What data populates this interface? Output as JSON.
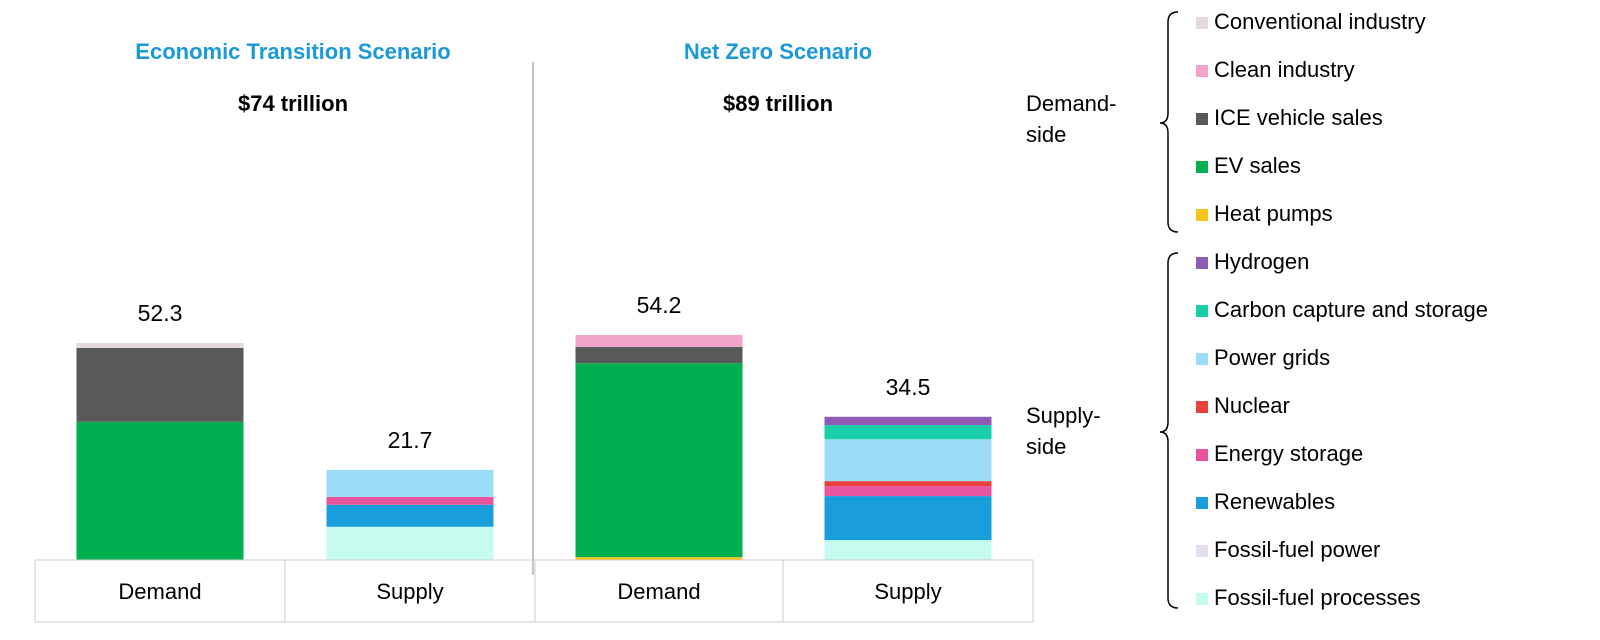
{
  "chart_data": {
    "type": "bar",
    "stacked": true,
    "panels": [
      {
        "title": "Economic Transition Scenario",
        "subtitle": "$74 trillion"
      },
      {
        "title": "Net Zero Scenario",
        "subtitle": "$89 trillion"
      }
    ],
    "title_color": "#1a9ad6",
    "categories": [
      "Demand",
      "Supply",
      "Demand",
      "Supply"
    ],
    "totals": [
      52.3,
      21.7,
      54.2,
      34.5
    ],
    "series": [
      {
        "name": "Conventional industry",
        "color": "#e3d9df",
        "values": [
          1.2,
          0,
          0,
          0
        ]
      },
      {
        "name": "Clean industry",
        "color": "#f2a3c9",
        "values": [
          0,
          0,
          2.9,
          0
        ]
      },
      {
        "name": "ICE vehicle sales",
        "color": "#595959",
        "values": [
          17.8,
          0,
          3.9,
          0
        ]
      },
      {
        "name": "EV sales",
        "color": "#00b050",
        "values": [
          33.3,
          0,
          46.7,
          0
        ]
      },
      {
        "name": "Heat pumps",
        "color": "#f5c518",
        "values": [
          0,
          0,
          0.7,
          0
        ]
      },
      {
        "name": "Hydrogen",
        "color": "#8e5bb5",
        "values": [
          0,
          0,
          0,
          2.0
        ]
      },
      {
        "name": "Carbon capture and storage",
        "color": "#19cfa8",
        "values": [
          0,
          0,
          0,
          3.4
        ]
      },
      {
        "name": "Power grids",
        "color": "#9ddcf7",
        "values": [
          0,
          6.5,
          0,
          10.1
        ]
      },
      {
        "name": "Nuclear",
        "color": "#e8413a",
        "values": [
          0,
          0,
          0,
          1.2
        ]
      },
      {
        "name": "Energy storage",
        "color": "#e8559e",
        "values": [
          0,
          1.9,
          0,
          2.4
        ]
      },
      {
        "name": "Renewables",
        "color": "#1a9ddb",
        "values": [
          0,
          5.3,
          0,
          10.6
        ]
      },
      {
        "name": "Fossil-fuel power",
        "color": "#e6dcef",
        "values": [
          0,
          0,
          0,
          0
        ]
      },
      {
        "name": "Fossil-fuel processes",
        "color": "#c6fbf0",
        "values": [
          0,
          8.0,
          0,
          4.8
        ]
      }
    ],
    "legend_groups": [
      {
        "label_lines": [
          "Demand-",
          "side"
        ]
      },
      {
        "label_lines": [
          "Supply-",
          "side"
        ]
      }
    ]
  }
}
